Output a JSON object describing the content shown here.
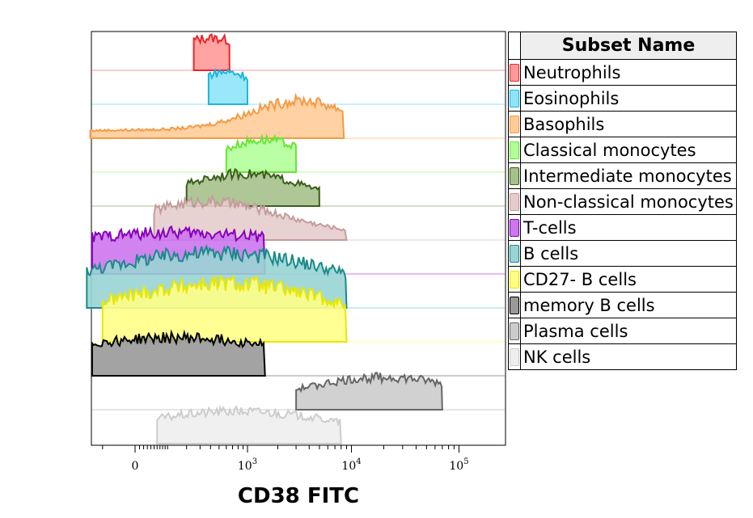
{
  "chart_data": {
    "type": "histogram-overlay",
    "title": "",
    "xlabel": "CD38 FITC",
    "ylabel": "",
    "x_scale": "biexponential",
    "x_ticks": [
      {
        "value": 0,
        "label": "0"
      },
      {
        "value": 1000,
        "base": "10",
        "exp": "3"
      },
      {
        "value": 10000,
        "base": "10",
        "exp": "4"
      },
      {
        "value": 100000,
        "base": "10",
        "exp": "5"
      }
    ],
    "legend_header": "Subset Name",
    "series": [
      {
        "name": "Neutrophils",
        "color": "#ff9999",
        "line": "#e8262b",
        "peaks": [
          [
            400,
            1.0,
            0.13
          ]
        ],
        "range": [
          250,
          650
        ]
      },
      {
        "name": "Eosinophils",
        "color": "#8fe4f8",
        "line": "#1ab6e0",
        "peaks": [
          [
            580,
            1.0,
            0.12
          ]
        ],
        "range": [
          380,
          1000
        ]
      },
      {
        "name": "Basophils",
        "color": "#ffcc99",
        "line": "#f59a44",
        "peaks": [
          [
            3500,
            1.0,
            0.16
          ],
          [
            30,
            0.25,
            0.5
          ]
        ],
        "range": [
          -160,
          8500
        ]
      },
      {
        "name": "Classical monocytes",
        "color": "#b3ff99",
        "line": "#66e633",
        "peaks": [
          [
            1450,
            1.0,
            0.14
          ]
        ],
        "range": [
          600,
          3000
        ]
      },
      {
        "name": "Intermediate monocytes",
        "color": "#a6c08c",
        "line": "#3b5e1a",
        "peaks": [
          [
            900,
            1.0,
            0.2
          ]
        ],
        "range": [
          200,
          5000
        ]
      },
      {
        "name": "Non-classical monocytes",
        "color": "#e6cccc",
        "line": "#c49c9c",
        "peaks": [
          [
            300,
            1.0,
            0.22
          ],
          [
            2000,
            0.25,
            0.3
          ]
        ],
        "range": [
          50,
          9000
        ]
      },
      {
        "name": "T-cells",
        "color": "#cc77ee",
        "line": "#8800bb",
        "peaks": [
          [
            50,
            1.0,
            0.6
          ],
          [
            500,
            0.3,
            0.4
          ]
        ],
        "range": [
          -150,
          1500
        ]
      },
      {
        "name": "B cells",
        "color": "#99d4d4",
        "line": "#1a8a8a",
        "peaks": [
          [
            60,
            0.8,
            0.5
          ],
          [
            500,
            0.8,
            0.35
          ],
          [
            4000,
            0.25,
            0.3
          ]
        ],
        "range": [
          -180,
          9000
        ]
      },
      {
        "name": "CD27- B cells",
        "color": "#ffff88",
        "line": "#e8e800",
        "peaks": [
          [
            60,
            0.7,
            0.5
          ],
          [
            500,
            0.9,
            0.35
          ],
          [
            3000,
            0.35,
            0.3
          ]
        ],
        "range": [
          -100,
          9000
        ]
      },
      {
        "name": "memory B cells",
        "color": "#999999",
        "line": "#000000",
        "peaks": [
          [
            70,
            1.0,
            0.45
          ],
          [
            600,
            0.2,
            0.35
          ]
        ],
        "range": [
          -150,
          1500
        ]
      },
      {
        "name": "Plasma cells",
        "color": "#cccccc",
        "line": "#666666",
        "peaks": [
          [
            20000,
            1.0,
            0.28
          ]
        ],
        "range": [
          3000,
          70000
        ]
      },
      {
        "name": "NK cells",
        "color": "#eeeeee",
        "line": "#cccccc",
        "peaks": [
          [
            800,
            1.0,
            0.35
          ]
        ],
        "range": [
          60,
          8000
        ]
      }
    ]
  }
}
